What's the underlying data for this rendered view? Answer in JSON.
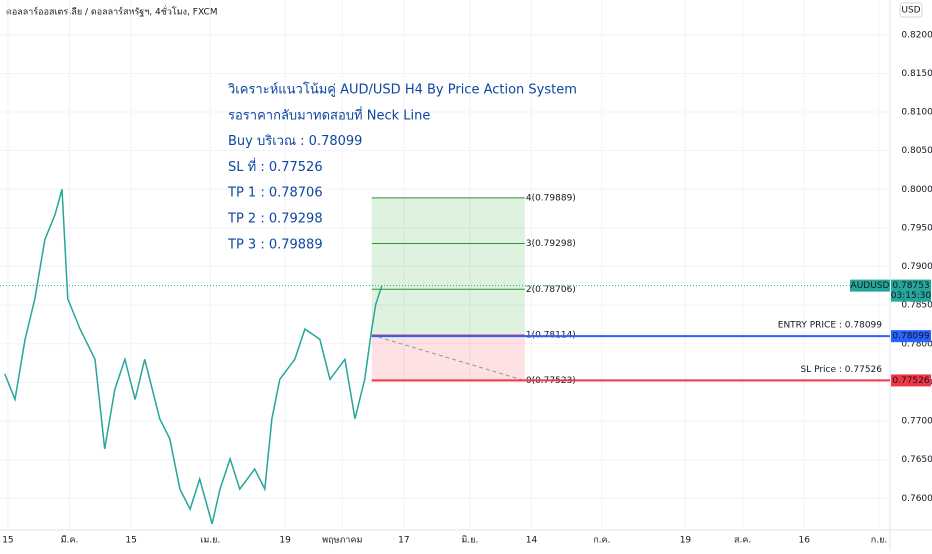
{
  "header": {
    "title": "ดอลลาร์ออสเตรเลีย / ดอลลาร์สหรัฐฯ, 4ชั่วโมง, FXCM",
    "currency": "USD"
  },
  "chart_data": {
    "type": "line",
    "xlim": [
      -1.8,
      200.5
    ],
    "xticks": [
      {
        "value": 0,
        "label": "15"
      },
      {
        "value": 14,
        "label": "มี.ค."
      },
      {
        "value": 28,
        "label": "15"
      },
      {
        "value": 46,
        "label": "เม.ย."
      },
      {
        "value": 63,
        "label": "19"
      },
      {
        "value": 76,
        "label": "พฤษภาคม"
      },
      {
        "value": 90,
        "label": "17"
      },
      {
        "value": 105,
        "label": "มิ.ย."
      },
      {
        "value": 119,
        "label": "14"
      },
      {
        "value": 135,
        "label": "ก.ค."
      },
      {
        "value": 154,
        "label": "19"
      },
      {
        "value": 167,
        "label": "ส.ค."
      },
      {
        "value": 181,
        "label": "16"
      },
      {
        "value": 198,
        "label": "ก.ย."
      }
    ],
    "ylim": [
      0.7559,
      0.8245
    ],
    "yticks": [
      {
        "value": 0.82,
        "label": "0.82000"
      },
      {
        "value": 0.815,
        "label": "0.81500"
      },
      {
        "value": 0.81,
        "label": "0.81000"
      },
      {
        "value": 0.805,
        "label": "0.80500"
      },
      {
        "value": 0.8,
        "label": "0.80000"
      },
      {
        "value": 0.795,
        "label": "0.79500"
      },
      {
        "value": 0.79,
        "label": "0.79000"
      },
      {
        "value": 0.785,
        "label": "0.78500"
      },
      {
        "value": 0.78,
        "label": "0.78000"
      },
      {
        "value": 0.775,
        "label": "0.77500"
      },
      {
        "value": 0.77,
        "label": "0.77000"
      },
      {
        "value": 0.765,
        "label": "0.76500"
      },
      {
        "value": 0.76,
        "label": "0.76000"
      }
    ],
    "grid": true,
    "symbol": "AUDUSD",
    "last_price": 0.78753,
    "countdown": "03:15:30",
    "series": [
      {
        "color": "#26a69a",
        "x": [
          -0.7,
          1.6,
          3.9,
          6.1,
          8.4,
          10.7,
          12.3,
          13.6,
          16.4,
          19.8,
          22.0,
          24.3,
          26.6,
          28.9,
          31.1,
          34.5,
          36.8,
          39.1,
          41.4,
          43.6,
          46.4,
          48.2,
          50.5,
          52.7,
          56.1,
          58.4,
          60.0,
          61.8,
          65.2,
          67.5,
          70.9,
          73.2,
          76.6,
          78.9,
          81.1,
          82.7,
          83.6,
          85.0
        ],
        "values": [
          0.7761,
          0.7728,
          0.7806,
          0.7858,
          0.7935,
          0.7967,
          0.8,
          0.7858,
          0.7819,
          0.778,
          0.7664,
          0.7741,
          0.778,
          0.7728,
          0.778,
          0.7703,
          0.7677,
          0.7612,
          0.7586,
          0.7625,
          0.7567,
          0.7612,
          0.7651,
          0.7612,
          0.7638,
          0.7612,
          0.7703,
          0.7754,
          0.778,
          0.7819,
          0.7806,
          0.7754,
          0.778,
          0.7703,
          0.7754,
          0.7819,
          0.7851,
          0.78753
        ]
      }
    ],
    "fib_range": [
      82.7,
      117.5
    ],
    "fib_levels": [
      {
        "value": 0.77523,
        "label": "0(0.77523)"
      },
      {
        "value": 0.78114,
        "label": "1(0.78114)"
      },
      {
        "value": 0.78706,
        "label": "2(0.78706)"
      },
      {
        "value": 0.79298,
        "label": "3(0.79298)"
      },
      {
        "value": 0.79889,
        "label": "4(0.79889)"
      }
    ],
    "levels": [
      {
        "name": "ENTRY PRICE : 0.78099",
        "value": 0.78099,
        "color": "#2962ff"
      },
      {
        "name": "SL Price : 0.77526",
        "value": 0.77526,
        "color": "#f23645"
      }
    ],
    "notes": [
      "วิเคราะห์แนวโน้มคู่ AUD/USD H4 By Price Action System",
      "รอราคากลับมาทดสอบที่ Neck Line",
      "Buy บริเวณ : 0.78099",
      "SL  ที่  : 0.77526",
      "TP 1 : 0.78706",
      "TP 2 : 0.79298",
      "TP 3 : 0.79889"
    ]
  }
}
